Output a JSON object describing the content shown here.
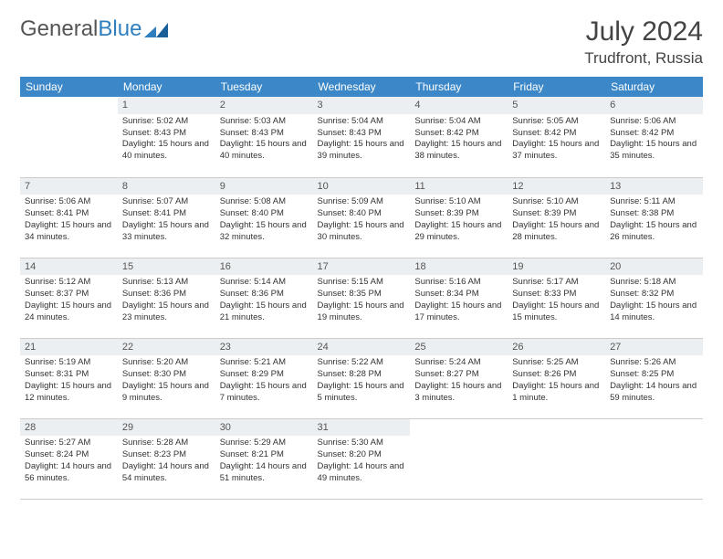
{
  "brand": {
    "part1": "General",
    "part2": "Blue"
  },
  "header": {
    "title": "July 2024",
    "location": "Trudfront, Russia"
  },
  "colors": {
    "header_bg": "#3b87c8",
    "header_fg": "#ffffff",
    "daynum_bg": "#eceff1",
    "border": "#cccccc"
  },
  "dayNames": [
    "Sunday",
    "Monday",
    "Tuesday",
    "Wednesday",
    "Thursday",
    "Friday",
    "Saturday"
  ],
  "weeks": [
    [
      {
        "n": "",
        "sr": "",
        "ss": "",
        "dl": ""
      },
      {
        "n": "1",
        "sr": "Sunrise: 5:02 AM",
        "ss": "Sunset: 8:43 PM",
        "dl": "Daylight: 15 hours and 40 minutes."
      },
      {
        "n": "2",
        "sr": "Sunrise: 5:03 AM",
        "ss": "Sunset: 8:43 PM",
        "dl": "Daylight: 15 hours and 40 minutes."
      },
      {
        "n": "3",
        "sr": "Sunrise: 5:04 AM",
        "ss": "Sunset: 8:43 PM",
        "dl": "Daylight: 15 hours and 39 minutes."
      },
      {
        "n": "4",
        "sr": "Sunrise: 5:04 AM",
        "ss": "Sunset: 8:42 PM",
        "dl": "Daylight: 15 hours and 38 minutes."
      },
      {
        "n": "5",
        "sr": "Sunrise: 5:05 AM",
        "ss": "Sunset: 8:42 PM",
        "dl": "Daylight: 15 hours and 37 minutes."
      },
      {
        "n": "6",
        "sr": "Sunrise: 5:06 AM",
        "ss": "Sunset: 8:42 PM",
        "dl": "Daylight: 15 hours and 35 minutes."
      }
    ],
    [
      {
        "n": "7",
        "sr": "Sunrise: 5:06 AM",
        "ss": "Sunset: 8:41 PM",
        "dl": "Daylight: 15 hours and 34 minutes."
      },
      {
        "n": "8",
        "sr": "Sunrise: 5:07 AM",
        "ss": "Sunset: 8:41 PM",
        "dl": "Daylight: 15 hours and 33 minutes."
      },
      {
        "n": "9",
        "sr": "Sunrise: 5:08 AM",
        "ss": "Sunset: 8:40 PM",
        "dl": "Daylight: 15 hours and 32 minutes."
      },
      {
        "n": "10",
        "sr": "Sunrise: 5:09 AM",
        "ss": "Sunset: 8:40 PM",
        "dl": "Daylight: 15 hours and 30 minutes."
      },
      {
        "n": "11",
        "sr": "Sunrise: 5:10 AM",
        "ss": "Sunset: 8:39 PM",
        "dl": "Daylight: 15 hours and 29 minutes."
      },
      {
        "n": "12",
        "sr": "Sunrise: 5:10 AM",
        "ss": "Sunset: 8:39 PM",
        "dl": "Daylight: 15 hours and 28 minutes."
      },
      {
        "n": "13",
        "sr": "Sunrise: 5:11 AM",
        "ss": "Sunset: 8:38 PM",
        "dl": "Daylight: 15 hours and 26 minutes."
      }
    ],
    [
      {
        "n": "14",
        "sr": "Sunrise: 5:12 AM",
        "ss": "Sunset: 8:37 PM",
        "dl": "Daylight: 15 hours and 24 minutes."
      },
      {
        "n": "15",
        "sr": "Sunrise: 5:13 AM",
        "ss": "Sunset: 8:36 PM",
        "dl": "Daylight: 15 hours and 23 minutes."
      },
      {
        "n": "16",
        "sr": "Sunrise: 5:14 AM",
        "ss": "Sunset: 8:36 PM",
        "dl": "Daylight: 15 hours and 21 minutes."
      },
      {
        "n": "17",
        "sr": "Sunrise: 5:15 AM",
        "ss": "Sunset: 8:35 PM",
        "dl": "Daylight: 15 hours and 19 minutes."
      },
      {
        "n": "18",
        "sr": "Sunrise: 5:16 AM",
        "ss": "Sunset: 8:34 PM",
        "dl": "Daylight: 15 hours and 17 minutes."
      },
      {
        "n": "19",
        "sr": "Sunrise: 5:17 AM",
        "ss": "Sunset: 8:33 PM",
        "dl": "Daylight: 15 hours and 15 minutes."
      },
      {
        "n": "20",
        "sr": "Sunrise: 5:18 AM",
        "ss": "Sunset: 8:32 PM",
        "dl": "Daylight: 15 hours and 14 minutes."
      }
    ],
    [
      {
        "n": "21",
        "sr": "Sunrise: 5:19 AM",
        "ss": "Sunset: 8:31 PM",
        "dl": "Daylight: 15 hours and 12 minutes."
      },
      {
        "n": "22",
        "sr": "Sunrise: 5:20 AM",
        "ss": "Sunset: 8:30 PM",
        "dl": "Daylight: 15 hours and 9 minutes."
      },
      {
        "n": "23",
        "sr": "Sunrise: 5:21 AM",
        "ss": "Sunset: 8:29 PM",
        "dl": "Daylight: 15 hours and 7 minutes."
      },
      {
        "n": "24",
        "sr": "Sunrise: 5:22 AM",
        "ss": "Sunset: 8:28 PM",
        "dl": "Daylight: 15 hours and 5 minutes."
      },
      {
        "n": "25",
        "sr": "Sunrise: 5:24 AM",
        "ss": "Sunset: 8:27 PM",
        "dl": "Daylight: 15 hours and 3 minutes."
      },
      {
        "n": "26",
        "sr": "Sunrise: 5:25 AM",
        "ss": "Sunset: 8:26 PM",
        "dl": "Daylight: 15 hours and 1 minute."
      },
      {
        "n": "27",
        "sr": "Sunrise: 5:26 AM",
        "ss": "Sunset: 8:25 PM",
        "dl": "Daylight: 14 hours and 59 minutes."
      }
    ],
    [
      {
        "n": "28",
        "sr": "Sunrise: 5:27 AM",
        "ss": "Sunset: 8:24 PM",
        "dl": "Daylight: 14 hours and 56 minutes."
      },
      {
        "n": "29",
        "sr": "Sunrise: 5:28 AM",
        "ss": "Sunset: 8:23 PM",
        "dl": "Daylight: 14 hours and 54 minutes."
      },
      {
        "n": "30",
        "sr": "Sunrise: 5:29 AM",
        "ss": "Sunset: 8:21 PM",
        "dl": "Daylight: 14 hours and 51 minutes."
      },
      {
        "n": "31",
        "sr": "Sunrise: 5:30 AM",
        "ss": "Sunset: 8:20 PM",
        "dl": "Daylight: 14 hours and 49 minutes."
      },
      {
        "n": "",
        "sr": "",
        "ss": "",
        "dl": ""
      },
      {
        "n": "",
        "sr": "",
        "ss": "",
        "dl": ""
      },
      {
        "n": "",
        "sr": "",
        "ss": "",
        "dl": ""
      }
    ]
  ]
}
